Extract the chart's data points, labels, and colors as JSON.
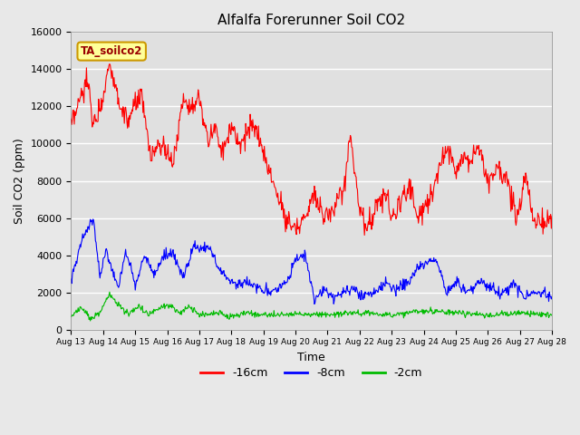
{
  "title": "Alfalfa Forerunner Soil CO2",
  "xlabel": "Time",
  "ylabel": "Soil CO2 (ppm)",
  "legend_label": "TA_soilco2",
  "series_labels": [
    "-16cm",
    "-8cm",
    "-2cm"
  ],
  "series_colors": [
    "#ff0000",
    "#0000ff",
    "#00bb00"
  ],
  "xlim_days": [
    0,
    15
  ],
  "ylim": [
    0,
    16000
  ],
  "yticks": [
    0,
    2000,
    4000,
    6000,
    8000,
    10000,
    12000,
    14000,
    16000
  ],
  "xtick_labels": [
    "Aug 13",
    "Aug 14",
    "Aug 15",
    "Aug 16",
    "Aug 17",
    "Aug 18",
    "Aug 19",
    "Aug 20",
    "Aug 21",
    "Aug 22",
    "Aug 23",
    "Aug 24",
    "Aug 25",
    "Aug 26",
    "Aug 27",
    "Aug 28"
  ],
  "fig_bg_color": "#e8e8e8",
  "plot_bg_color": "#e0e0e0",
  "legend_box_facecolor": "#ffff99",
  "legend_box_edgecolor": "#cc9900",
  "ta_text_color": "#990000",
  "n_points": 750
}
